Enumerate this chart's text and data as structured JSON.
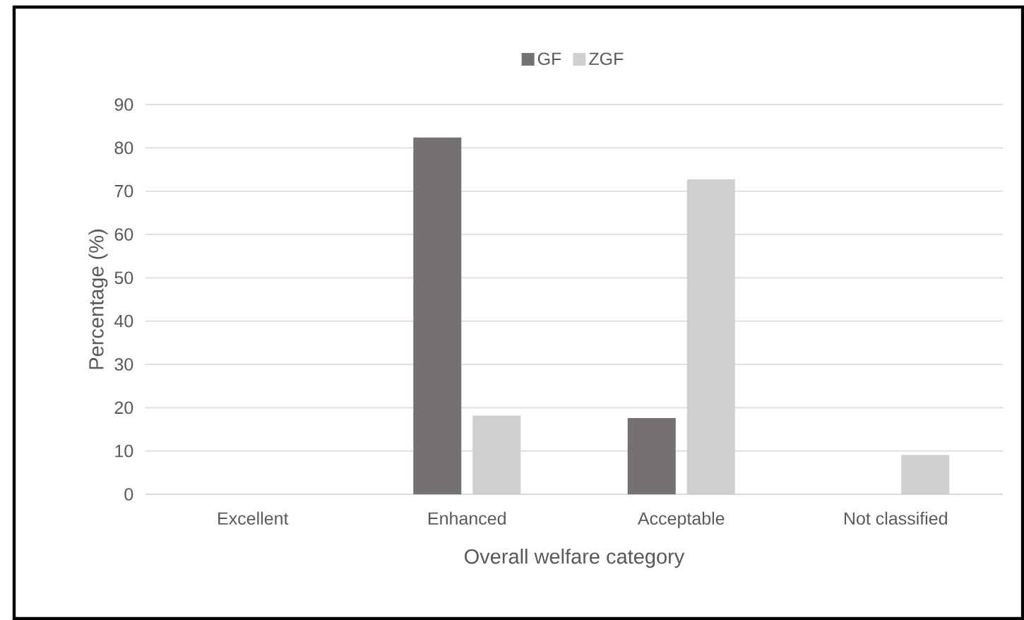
{
  "chart_data": {
    "type": "bar",
    "xlabel": "Overall welfare category",
    "ylabel": "Percentage (%)",
    "categories": [
      "Excellent",
      "Enhanced",
      "Acceptable",
      "Not classified"
    ],
    "series": [
      {
        "name": "GF",
        "color": "#767171",
        "values": [
          0,
          82.4,
          17.6,
          0
        ]
      },
      {
        "name": "ZGF",
        "color": "#d0cece",
        "values": [
          0,
          18.2,
          72.7,
          9.1
        ]
      }
    ],
    "ylim": [
      0,
      90
    ],
    "yticks": [
      0,
      10,
      20,
      30,
      40,
      50,
      60,
      70,
      80,
      90
    ],
    "grid": "y",
    "legend": "top"
  }
}
